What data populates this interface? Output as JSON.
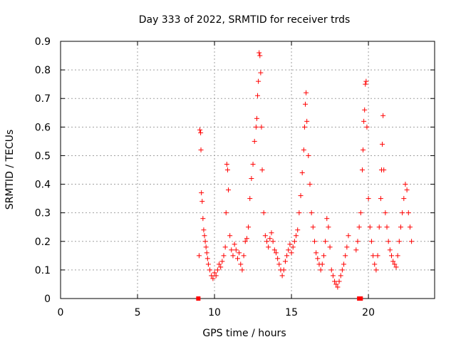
{
  "chart_data": {
    "type": "scatter",
    "title": "Day 333 of 2022, SRMTID for receiver trds",
    "xlabel": "GPS time / hours",
    "ylabel": "SRMTID / TECUs",
    "xlim": [
      0,
      24.3
    ],
    "ylim": [
      0,
      0.9
    ],
    "xticks": [
      0,
      5,
      10,
      15,
      20
    ],
    "yticks": [
      0,
      0.1,
      0.2,
      0.3,
      0.4,
      0.5,
      0.6,
      0.7,
      0.8,
      0.9
    ],
    "grid": true,
    "marker": "plus",
    "color": "#ff0000",
    "x_range_of_data": [
      8.9,
      22.8
    ],
    "baseline_markers_x": [
      8.95,
      19.4,
      19.5
    ],
    "series": [
      {
        "name": "SRMTID",
        "points": [
          [
            9.0,
            0.15
          ],
          [
            9.05,
            0.59
          ],
          [
            9.1,
            0.58
          ],
          [
            9.12,
            0.52
          ],
          [
            9.15,
            0.37
          ],
          [
            9.2,
            0.34
          ],
          [
            9.25,
            0.28
          ],
          [
            9.3,
            0.24
          ],
          [
            9.35,
            0.22
          ],
          [
            9.4,
            0.2
          ],
          [
            9.45,
            0.18
          ],
          [
            9.5,
            0.16
          ],
          [
            9.55,
            0.14
          ],
          [
            9.6,
            0.12
          ],
          [
            9.7,
            0.1
          ],
          [
            9.8,
            0.08
          ],
          [
            9.9,
            0.07
          ],
          [
            10.0,
            0.09
          ],
          [
            10.1,
            0.08
          ],
          [
            10.2,
            0.1
          ],
          [
            10.3,
            0.12
          ],
          [
            10.4,
            0.11
          ],
          [
            10.5,
            0.13
          ],
          [
            10.6,
            0.15
          ],
          [
            10.7,
            0.18
          ],
          [
            10.75,
            0.3
          ],
          [
            10.8,
            0.47
          ],
          [
            10.85,
            0.45
          ],
          [
            10.9,
            0.38
          ],
          [
            11.0,
            0.22
          ],
          [
            11.1,
            0.17
          ],
          [
            11.2,
            0.15
          ],
          [
            11.3,
            0.19
          ],
          [
            11.4,
            0.17
          ],
          [
            11.5,
            0.14
          ],
          [
            11.6,
            0.16
          ],
          [
            11.7,
            0.12
          ],
          [
            11.8,
            0.1
          ],
          [
            11.9,
            0.15
          ],
          [
            12.0,
            0.2
          ],
          [
            12.1,
            0.21
          ],
          [
            12.2,
            0.25
          ],
          [
            12.3,
            0.35
          ],
          [
            12.4,
            0.42
          ],
          [
            12.5,
            0.47
          ],
          [
            12.6,
            0.55
          ],
          [
            12.7,
            0.6
          ],
          [
            12.75,
            0.63
          ],
          [
            12.8,
            0.71
          ],
          [
            12.85,
            0.76
          ],
          [
            12.9,
            0.86
          ],
          [
            12.95,
            0.85
          ],
          [
            13.0,
            0.79
          ],
          [
            13.05,
            0.6
          ],
          [
            13.1,
            0.45
          ],
          [
            13.2,
            0.3
          ],
          [
            13.3,
            0.22
          ],
          [
            13.4,
            0.2
          ],
          [
            13.5,
            0.18
          ],
          [
            13.6,
            0.21
          ],
          [
            13.7,
            0.23
          ],
          [
            13.8,
            0.2
          ],
          [
            13.9,
            0.17
          ],
          [
            14.0,
            0.16
          ],
          [
            14.1,
            0.14
          ],
          [
            14.2,
            0.12
          ],
          [
            14.3,
            0.1
          ],
          [
            14.4,
            0.08
          ],
          [
            14.5,
            0.1
          ],
          [
            14.6,
            0.13
          ],
          [
            14.7,
            0.15
          ],
          [
            14.8,
            0.17
          ],
          [
            14.9,
            0.19
          ],
          [
            15.0,
            0.16
          ],
          [
            15.1,
            0.18
          ],
          [
            15.2,
            0.2
          ],
          [
            15.3,
            0.22
          ],
          [
            15.4,
            0.24
          ],
          [
            15.5,
            0.3
          ],
          [
            15.6,
            0.36
          ],
          [
            15.7,
            0.44
          ],
          [
            15.8,
            0.52
          ],
          [
            15.85,
            0.6
          ],
          [
            15.9,
            0.68
          ],
          [
            15.95,
            0.72
          ],
          [
            16.0,
            0.62
          ],
          [
            16.1,
            0.5
          ],
          [
            16.2,
            0.4
          ],
          [
            16.3,
            0.3
          ],
          [
            16.4,
            0.25
          ],
          [
            16.5,
            0.2
          ],
          [
            16.6,
            0.16
          ],
          [
            16.7,
            0.14
          ],
          [
            16.8,
            0.12
          ],
          [
            16.9,
            0.1
          ],
          [
            17.0,
            0.12
          ],
          [
            17.1,
            0.15
          ],
          [
            17.2,
            0.2
          ],
          [
            17.3,
            0.28
          ],
          [
            17.4,
            0.25
          ],
          [
            17.5,
            0.18
          ],
          [
            17.6,
            0.1
          ],
          [
            17.7,
            0.08
          ],
          [
            17.8,
            0.06
          ],
          [
            17.9,
            0.05
          ],
          [
            18.0,
            0.04
          ],
          [
            18.1,
            0.06
          ],
          [
            18.2,
            0.08
          ],
          [
            18.3,
            0.1
          ],
          [
            18.4,
            0.12
          ],
          [
            18.5,
            0.15
          ],
          [
            18.6,
            0.18
          ],
          [
            18.7,
            0.22
          ],
          [
            19.2,
            0.17
          ],
          [
            19.3,
            0.2
          ],
          [
            19.4,
            0.25
          ],
          [
            19.5,
            0.3
          ],
          [
            19.6,
            0.45
          ],
          [
            19.65,
            0.52
          ],
          [
            19.7,
            0.62
          ],
          [
            19.75,
            0.66
          ],
          [
            19.8,
            0.75
          ],
          [
            19.85,
            0.76
          ],
          [
            19.9,
            0.6
          ],
          [
            20.0,
            0.35
          ],
          [
            20.1,
            0.25
          ],
          [
            20.2,
            0.2
          ],
          [
            20.3,
            0.15
          ],
          [
            20.4,
            0.12
          ],
          [
            20.5,
            0.1
          ],
          [
            20.6,
            0.15
          ],
          [
            20.7,
            0.25
          ],
          [
            20.8,
            0.35
          ],
          [
            20.85,
            0.45
          ],
          [
            20.9,
            0.54
          ],
          [
            20.95,
            0.64
          ],
          [
            21.0,
            0.45
          ],
          [
            21.1,
            0.3
          ],
          [
            21.2,
            0.25
          ],
          [
            21.3,
            0.2
          ],
          [
            21.4,
            0.17
          ],
          [
            21.5,
            0.15
          ],
          [
            21.6,
            0.13
          ],
          [
            21.7,
            0.12
          ],
          [
            21.8,
            0.11
          ],
          [
            21.9,
            0.15
          ],
          [
            22.0,
            0.2
          ],
          [
            22.1,
            0.25
          ],
          [
            22.2,
            0.3
          ],
          [
            22.3,
            0.35
          ],
          [
            22.4,
            0.4
          ],
          [
            22.5,
            0.38
          ],
          [
            22.6,
            0.3
          ],
          [
            22.7,
            0.25
          ],
          [
            22.8,
            0.2
          ]
        ]
      }
    ]
  }
}
